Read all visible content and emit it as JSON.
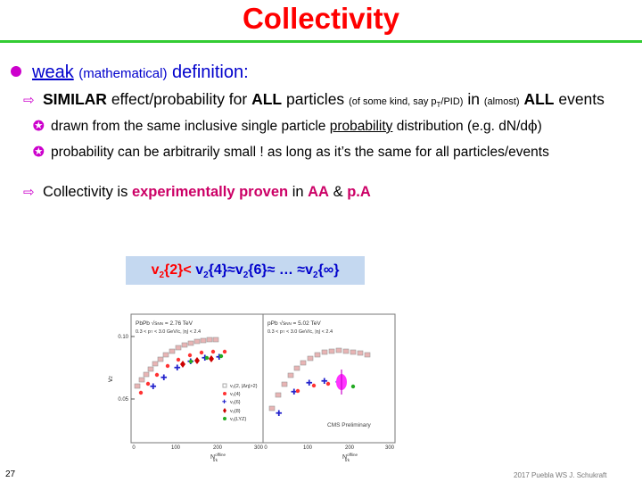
{
  "title": "Collectivity",
  "bullet1": {
    "weak": "weak",
    "mathematical": "(mathematical)",
    "definition": "definition:"
  },
  "bullet2": {
    "similar": "SIMILAR",
    "t1": "effect/probability for",
    "all": "ALL",
    "t2": "particles",
    "small1": "(of some kind, say p",
    "small1sub": "T",
    "small1end": "/PID)",
    "in": "in",
    "almost": "(almost)",
    "all2": "ALL",
    "events": "events"
  },
  "bullet3": {
    "t1": "drawn from the same inclusive single particle",
    "prob": "probability",
    "t2": "distribution (e.g. d",
    "t3": "N/d",
    "phi": "ϕ",
    "t4": ")"
  },
  "bullet4": {
    "text": "probability can be arbitrarily small ! as long as it’s the same for all particles/events"
  },
  "bullet5": {
    "t1": "Collectivity is",
    "proven": "experimentally proven",
    "in": "in",
    "aa": "AA",
    "amp": "&",
    "pa": "p.A"
  },
  "equation": {
    "a": "v",
    "a2": "{2}",
    "lt": "<",
    "b": "v",
    "b2": "{4}≈",
    "c": "v",
    "c2": "{6}≈ … ≈",
    "d": "v",
    "d2": "{∞}",
    "sub": "2"
  },
  "plot_left": {
    "header1": "PbPb √s",
    "header1b": "NN",
    "header1c": " = 2.76 TeV",
    "header2": "0.3 < p",
    "header2b": "T",
    "header2c": " < 3.0 GeV/c, |η| < 2.4",
    "ylabel": "v",
    "ylabel_sub": "2",
    "yticks": [
      "0.10",
      "0.05"
    ],
    "xticks": [
      "0",
      "100",
      "200",
      "300"
    ],
    "xlabel": "N",
    "xlabel_sup": "offline",
    "xlabel_sub": "trk",
    "legend": [
      "v₂{2, |Δη|>2}",
      "v₂{4}",
      "v₂{6}",
      "v₂{8}",
      "v₂{LYZ}"
    ],
    "legend_colors": [
      "#aaaaaa",
      "#ff3333",
      "#2222cc",
      "#cc0000",
      "#22aa22"
    ]
  },
  "plot_right": {
    "header1": "pPb √s",
    "header1b": "NN",
    "header1c": " = 5.02 TeV",
    "header2": "0.3 < p",
    "header2b": "T",
    "header2c": " < 3.0 GeV/c, |η| < 2.4",
    "xticks": [
      "0",
      "100",
      "200",
      "300"
    ],
    "xlabel": "N",
    "xlabel_sup": "offline",
    "xlabel_sub": "trk",
    "prelim": "CMS Preliminary"
  },
  "page_number": "27",
  "footer": "2017 Puebla WS J. Schukraft"
}
